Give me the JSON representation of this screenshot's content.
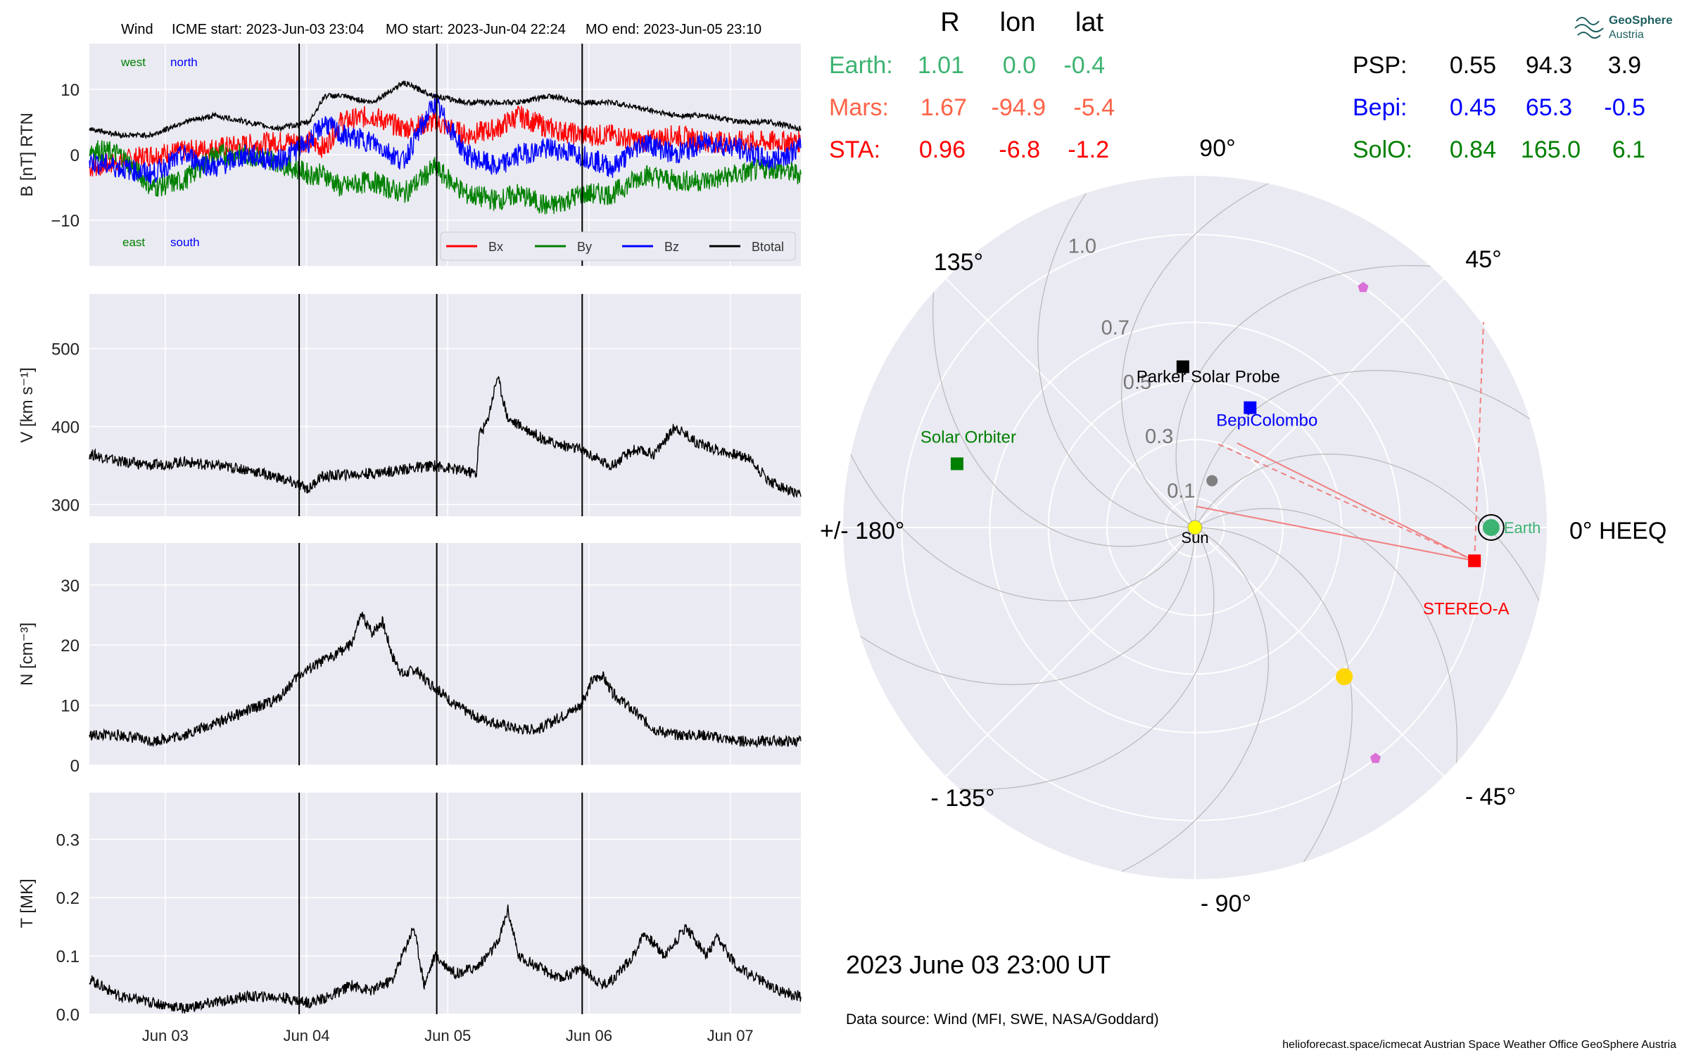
{
  "header": {
    "spacecraft": "Wind",
    "icme_start": "ICME start: 2023-Jun-03 23:04",
    "mo_start": "MO start: 2023-Jun-04 22:24",
    "mo_end": "MO end: 2023-Jun-05 23:10"
  },
  "colors": {
    "panel_bg": "#eaeaf2",
    "grid": "#ffffff",
    "bx": "#ff0000",
    "by": "#008000",
    "bz": "#0000ff",
    "btotal": "#000000",
    "earth": "#3cb371",
    "mars": "#ff6347",
    "sta": "#ff0000",
    "psp": "#000000",
    "bepi": "#0000ff",
    "solo": "#008000",
    "sun": "#ffff00",
    "planet_yellow": "#ffd700",
    "planet_violet": "#da70d6"
  },
  "chart_data": [
    {
      "type": "line",
      "panel": "magnetic-field",
      "ylabel": "B [nT] RTN",
      "ylim": [
        -17,
        17
      ],
      "yticks": [
        "10",
        "0",
        "−10"
      ],
      "ytick_values": [
        10,
        0,
        -10
      ],
      "corner_labels": {
        "west": "west",
        "north": "north",
        "east": "east",
        "south": "south"
      },
      "legend": [
        "Bx",
        "By",
        "Bz",
        "Btotal"
      ],
      "legend_position": "lower-right",
      "grid": true,
      "series": [
        {
          "name": "Bx",
          "x": [
            0,
            6,
            12,
            18,
            24,
            30,
            36,
            42,
            45,
            48,
            54,
            60,
            66,
            72,
            78,
            82,
            88,
            94,
            100,
            106,
            112,
            118,
            124,
            130,
            136
          ],
          "y": [
            -2,
            -1,
            0,
            0.5,
            1,
            1.5,
            2,
            2,
            1,
            5,
            6,
            4,
            5,
            3,
            4,
            6,
            4,
            3,
            3,
            2,
            3,
            2,
            2,
            2,
            2
          ]
        },
        {
          "name": "By",
          "x": [
            0,
            6,
            12,
            18,
            24,
            30,
            36,
            42,
            45,
            48,
            54,
            60,
            66,
            72,
            78,
            82,
            88,
            94,
            100,
            106,
            112,
            118,
            124,
            130,
            136
          ],
          "y": [
            1,
            0,
            -5,
            -4,
            0,
            0,
            -1,
            -3,
            -3,
            -5,
            -4,
            -6,
            -2,
            -6,
            -7,
            -6,
            -8,
            -6,
            -6,
            -3,
            -4,
            -4,
            -3,
            -2,
            -3
          ]
        },
        {
          "name": "Bz",
          "x": [
            0,
            6,
            12,
            18,
            24,
            30,
            36,
            42,
            45,
            48,
            54,
            60,
            66,
            72,
            78,
            82,
            88,
            94,
            100,
            106,
            112,
            118,
            124,
            130,
            136
          ],
          "y": [
            -1,
            -2,
            -3,
            0,
            -2,
            0,
            -1,
            2,
            5,
            3,
            2,
            -1,
            8,
            0,
            -2,
            0,
            1,
            0,
            -2,
            2,
            0,
            2,
            1,
            -1,
            1
          ]
        },
        {
          "name": "Btotal",
          "x": [
            0,
            6,
            12,
            18,
            24,
            30,
            36,
            42,
            45,
            48,
            54,
            60,
            66,
            72,
            78,
            82,
            88,
            94,
            100,
            106,
            112,
            118,
            124,
            130,
            136
          ],
          "y": [
            4,
            3,
            3,
            5,
            6,
            5,
            4,
            5,
            9,
            9,
            8,
            11,
            9,
            8,
            8,
            8,
            9,
            8,
            8,
            7,
            6,
            6,
            5,
            5,
            4
          ]
        }
      ]
    },
    {
      "type": "line",
      "panel": "speed",
      "ylabel": "V [km s⁻¹]",
      "ylim": [
        285,
        570
      ],
      "yticks": [
        "500",
        "400",
        "300"
      ],
      "ytick_values": [
        500,
        400,
        300
      ],
      "grid": true,
      "series": [
        {
          "name": "",
          "x": [
            0,
            6,
            12,
            18,
            24,
            30,
            36,
            40,
            42,
            44,
            48,
            54,
            60,
            66,
            70,
            74,
            74.5,
            76,
            78,
            80,
            84,
            88,
            94,
            98,
            100,
            104,
            108,
            112,
            116,
            120,
            126,
            130,
            136
          ],
          "y": [
            365,
            355,
            350,
            355,
            350,
            345,
            335,
            325,
            320,
            335,
            338,
            340,
            345,
            350,
            345,
            340,
            390,
            405,
            465,
            410,
            395,
            380,
            370,
            355,
            350,
            370,
            365,
            400,
            380,
            370,
            360,
            330,
            310
          ]
        }
      ]
    },
    {
      "type": "line",
      "panel": "density",
      "ylabel": "N [cm⁻³]",
      "ylim": [
        0,
        37
      ],
      "yticks": [
        "30",
        "20",
        "10",
        "0"
      ],
      "ytick_values": [
        30,
        20,
        10,
        0
      ],
      "grid": true,
      "series": [
        {
          "name": "",
          "x": [
            0,
            6,
            12,
            18,
            24,
            30,
            36,
            40,
            42,
            46,
            50,
            52,
            54,
            56,
            58,
            60,
            62,
            66,
            70,
            74,
            78,
            82,
            86,
            90,
            94,
            96,
            98,
            100,
            104,
            108,
            112,
            118,
            124,
            130,
            136
          ],
          "y": [
            5,
            5,
            4,
            5,
            7,
            9,
            11,
            15,
            16,
            18,
            20,
            25,
            22,
            24,
            18,
            15,
            16,
            13,
            10,
            8,
            7,
            6,
            6,
            8,
            10,
            14,
            15,
            12,
            9,
            6,
            5,
            5,
            4,
            4,
            4
          ]
        }
      ]
    },
    {
      "type": "line",
      "panel": "temperature",
      "ylabel": "T [MK]",
      "ylim": [
        0,
        0.38
      ],
      "yticks": [
        "0.3",
        "0.2",
        "0.1",
        "0.0"
      ],
      "ytick_values": [
        0.3,
        0.2,
        0.1,
        0.0
      ],
      "xticks": [
        "Jun 03",
        "Jun 04",
        "Jun 05",
        "Jun 06",
        "Jun 07"
      ],
      "xtick_values": [
        14.5,
        41.5,
        68.5,
        95.5,
        122.5
      ],
      "grid": true,
      "series": [
        {
          "name": "",
          "x": [
            0,
            6,
            12,
            18,
            24,
            30,
            36,
            42,
            46,
            50,
            54,
            58,
            62,
            64,
            66,
            70,
            74,
            78,
            80,
            82,
            86,
            90,
            94,
            98,
            100,
            104,
            106,
            110,
            114,
            118,
            120,
            124,
            128,
            132,
            136
          ],
          "y": [
            0.06,
            0.03,
            0.02,
            0.01,
            0.02,
            0.03,
            0.03,
            0.02,
            0.03,
            0.05,
            0.04,
            0.06,
            0.15,
            0.05,
            0.1,
            0.07,
            0.08,
            0.12,
            0.18,
            0.1,
            0.08,
            0.06,
            0.08,
            0.05,
            0.06,
            0.1,
            0.14,
            0.1,
            0.15,
            0.1,
            0.13,
            0.08,
            0.06,
            0.04,
            0.03
          ]
        }
      ]
    }
  ],
  "event_lines": {
    "hours": [
      40.1,
      66.4,
      94.2
    ]
  },
  "positions": {
    "header": {
      "r": "R",
      "lon": "lon",
      "lat": "lat"
    },
    "left_rows": [
      {
        "name": "Earth:",
        "r": "1.01",
        "lon": "0.0",
        "lat": "-0.4",
        "color_key": "earth"
      },
      {
        "name": "Mars:",
        "r": "1.67",
        "lon": "-94.9",
        "lat": "-5.4",
        "color_key": "mars"
      },
      {
        "name": "STA:",
        "r": "0.96",
        "lon": "-6.8",
        "lat": "-1.2",
        "color_key": "sta"
      }
    ],
    "right_rows": [
      {
        "name": "PSP:",
        "r": "0.55",
        "lon": "94.3",
        "lat": "3.9",
        "color_key": "psp"
      },
      {
        "name": "Bepi:",
        "r": "0.45",
        "lon": "65.3",
        "lat": "-0.5",
        "color_key": "bepi"
      },
      {
        "name": "SolO:",
        "r": "0.84",
        "lon": "165.0",
        "lat": "6.1",
        "color_key": "solo"
      }
    ]
  },
  "polar": {
    "angle_labels": [
      "0° HEEQ",
      "45°",
      "90°",
      "135°",
      "+/- 180°",
      "- 135°",
      "- 90°",
      "- 45°"
    ],
    "radial_labels": [
      "0.1",
      "0.3",
      "0.5",
      "0.7",
      "1.0"
    ],
    "radial_values": [
      0.1,
      0.3,
      0.5,
      0.7,
      1.0
    ],
    "rmax": 1.2,
    "objects": [
      {
        "label": "Sun",
        "r": 0,
        "lon": 0,
        "marker": "circle",
        "color_key": "sun"
      },
      {
        "label": "Earth",
        "r": 1.01,
        "lon": 0.0,
        "marker": "circle",
        "color_key": "earth"
      },
      {
        "label": "STEREO-A",
        "r": 0.96,
        "lon": -6.8,
        "marker": "square",
        "color_key": "sta"
      },
      {
        "label": "Parker Solar Probe",
        "r": 0.55,
        "lon": 94.3,
        "marker": "square",
        "color_key": "psp"
      },
      {
        "label": "BepiColombo",
        "r": 0.45,
        "lon": 65.3,
        "marker": "square",
        "color_key": "bepi"
      },
      {
        "label": "Solar Orbiter",
        "r": 0.84,
        "lon": 165.0,
        "marker": "square",
        "color_key": "solo"
      },
      {
        "label": "",
        "r": 0.17,
        "lon": 70,
        "marker": "circle",
        "color_key": "mercury"
      },
      {
        "label": "",
        "r": 0.72,
        "lon": -45,
        "marker": "circle",
        "color_key": "planet_yellow"
      },
      {
        "label": "",
        "r": 1.0,
        "lon": 55,
        "marker": "pentagon",
        "color_key": "planet_violet"
      },
      {
        "label": "",
        "r": 1.0,
        "lon": -52,
        "marker": "pentagon",
        "color_key": "planet_violet"
      }
    ]
  },
  "footer": {
    "timestamp": "2023 June 03  23:00 UT",
    "data_source": "Data source: Wind (MFI, SWE, NASA/Goddard)",
    "credits": "helioforecast.space/icmecat   Austrian Space Weather Office   GeoSphere Austria",
    "logo_line1": "GeoSphere",
    "logo_line2": "Austria"
  }
}
